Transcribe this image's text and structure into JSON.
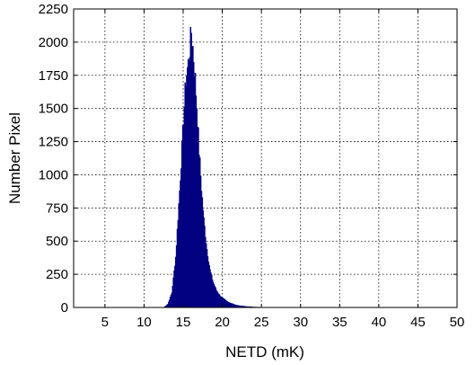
{
  "chart_data": {
    "type": "bar",
    "title": "",
    "xlabel": "NETD (mK)",
    "ylabel": "Number Pixel",
    "xlim": [
      1,
      50
    ],
    "ylim": [
      0,
      2250
    ],
    "xticks": [
      5,
      10,
      15,
      20,
      25,
      30,
      35,
      40,
      45,
      50
    ],
    "yticks": [
      0,
      250,
      500,
      750,
      1000,
      1250,
      1500,
      1750,
      2000,
      2250
    ],
    "grid": true,
    "legend": "none",
    "bar_color": "#000080",
    "bin_width": 0.1,
    "x": [
      12.5,
      13.0,
      13.5,
      14.0,
      14.5,
      15.0,
      15.3,
      15.6,
      15.8,
      16.0,
      16.2,
      16.5,
      16.8,
      17.0,
      17.3,
      17.6,
      18.0,
      18.4,
      18.8,
      19.2,
      19.6,
      20.0,
      20.5,
      21.0,
      21.5,
      22.0,
      23.0,
      24.0,
      25.0,
      26.0
    ],
    "values": [
      0,
      25,
      110,
      380,
      880,
      1420,
      1720,
      1840,
      1950,
      2080,
      1960,
      1720,
      1420,
      1180,
      900,
      660,
      440,
      280,
      190,
      130,
      95,
      70,
      48,
      33,
      22,
      14,
      7,
      3,
      1,
      0
    ]
  }
}
